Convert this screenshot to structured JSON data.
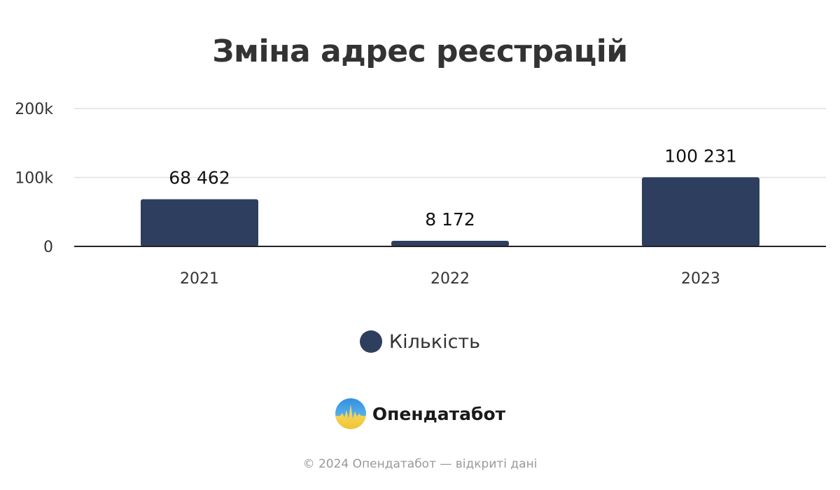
{
  "title": "Зміна адрес реєстрацій",
  "colors": {
    "bar": "#2e3e5e",
    "grid": "#e0e0e0",
    "axis": "#222222",
    "text": "#333333"
  },
  "chart_data": {
    "type": "bar",
    "categories": [
      "2021",
      "2022",
      "2023"
    ],
    "series": [
      {
        "name": "Кількість",
        "values": [
          68462,
          8172,
          100231
        ],
        "labels": [
          "68 462",
          "8 172",
          "100 231"
        ]
      }
    ],
    "yticks": [
      0,
      100000,
      200000
    ],
    "ytick_labels": [
      "0",
      "100k",
      "200k"
    ],
    "ylim": [
      0,
      200000
    ],
    "grid": true,
    "legend": "bottom-center"
  },
  "legend": {
    "label": "Кількість",
    "icon": "circle-marker"
  },
  "brand": {
    "name": "Опендатабот",
    "icon": "opendatabot-logo"
  },
  "footer": "© 2024 Опендатабот — відкриті дані"
}
